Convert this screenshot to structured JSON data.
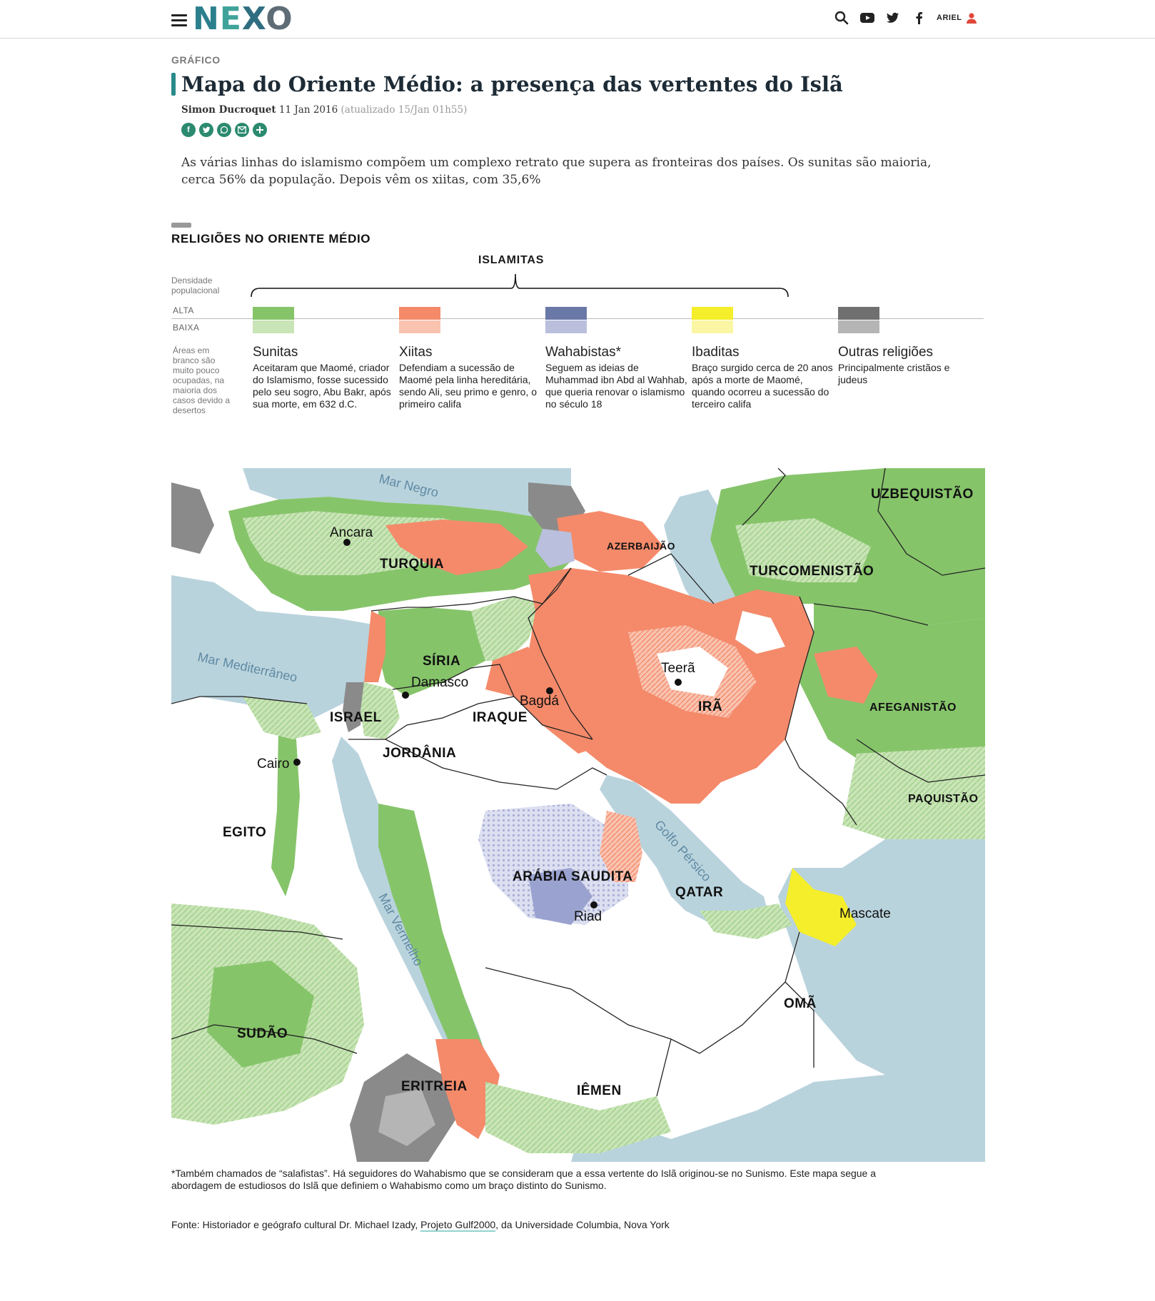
{
  "header": {
    "logo_letters": [
      "N",
      "E",
      "X",
      "O"
    ],
    "icons": [
      "menu-icon",
      "search-icon",
      "youtube-icon",
      "twitter-icon",
      "facebook-icon",
      "user-icon"
    ],
    "user_label": "ARIEL"
  },
  "article": {
    "kicker": "GRÁFICO",
    "title": "Mapa do Oriente Médio: a presença das vertentes do Islã",
    "author": "Simon Ducroquet",
    "date": "11 Jan 2016",
    "updated": "(atualizado 15/Jan 01h55)",
    "share_icons": [
      "facebook-share-icon",
      "twitter-share-icon",
      "whatsapp-share-icon",
      "email-share-icon",
      "more-share-icon"
    ],
    "lede": "As várias linhas do islamismo compõem um complexo retrato que supera as fronteiras dos países. Os sunitas são maioria, cerca 56% da população. Depois vêm os xiitas, com 35,6%"
  },
  "graphic": {
    "title": "RELIGIÕES NO ORIENTE MÉDIO",
    "group_label": "ISLAMITAS",
    "density_label": "Densidade populacional",
    "high_label": "ALTA",
    "low_label": "BAIXA",
    "blank_note": "Áreas em branco são muito pouco ocupadas, na maioria dos casos devido a desertos",
    "categories": [
      {
        "name": "Sunitas",
        "desc": "Aceitaram que Maomé, criador do Islamismo, fosse sucessido pelo seu sogro, Abu Bakr, após sua morte, em 632 d.C.",
        "color_high": "#86c46a",
        "color_low": "#c9e4b6"
      },
      {
        "name": "Xiitas",
        "desc": "Defendiam a sucessão de Maomé pela linha hereditária, sendo Ali, seu primo e genro, o primeiro califa",
        "color_high": "#f48a6a",
        "color_low": "#f9c3b0"
      },
      {
        "name": "Wahabistas*",
        "desc": "Seguem as ideias de Muhammad ibn Abd al Wahhab, que queria renovar o islamismo no século 18",
        "color_high": "#6a78a8",
        "color_low": "#b9bfdc"
      },
      {
        "name": "Ibaditas",
        "desc": "Braço surgido cerca de 20 anos após a morte de Maomé, quando ocorreu a sucessão do terceiro califa",
        "color_high": "#f5ee2a",
        "color_low": "#faf6a3"
      },
      {
        "name": "Outras religiões",
        "desc": "Principalmente cristãos e judeus",
        "color_high": "#707070",
        "color_low": "#b5b5b5"
      }
    ]
  },
  "map": {
    "countries": [
      "UZBEQUISTÃO",
      "AZERBAIJÃO",
      "TURCOMENISTÃO",
      "TURQUIA",
      "SÍRIA",
      "ISRAEL",
      "IRAQUE",
      "JORDÂNIA",
      "IRÃ",
      "AFEGANISTÃO",
      "PAQUISTÃO",
      "EGITO",
      "ARÁBIA SAUDITA",
      "QATAR",
      "OMÃ",
      "SUDÃO",
      "ERITREIA",
      "IÊMEN"
    ],
    "cities": [
      "Ancara",
      "Damasco",
      "Bagdá",
      "Teerã",
      "Cairo",
      "Riad",
      "Mascate"
    ],
    "seas": [
      "Mar Negro",
      "Mar Mediterrâneo",
      "Golfo Pérsico",
      "Mar Vermelho"
    ],
    "colors": {
      "water": "#b9d3dd",
      "sunni": "#86c46a",
      "sunni_low": "#c9e4b6",
      "shia": "#f48a6a",
      "wahhabi": "#b9bfdc",
      "ibadi": "#f5ee2a",
      "other": "#8a8a8a"
    }
  },
  "footnote": "*Também chamados de “salafistas”. Há seguidores do Wahabismo que se consideram que a essa vertente do Islã originou-se no Sunismo. Este mapa segue a abordagem de estudiosos do Islã que definiem o Wahabismo como um braço distinto do Sunismo.",
  "source": {
    "prefix": "Fonte: Historiador e geógrafo cultural Dr. Michael Izady,",
    "link": "Projeto Gulf2000",
    "suffix": ", da Universidade Columbia, Nova York"
  }
}
